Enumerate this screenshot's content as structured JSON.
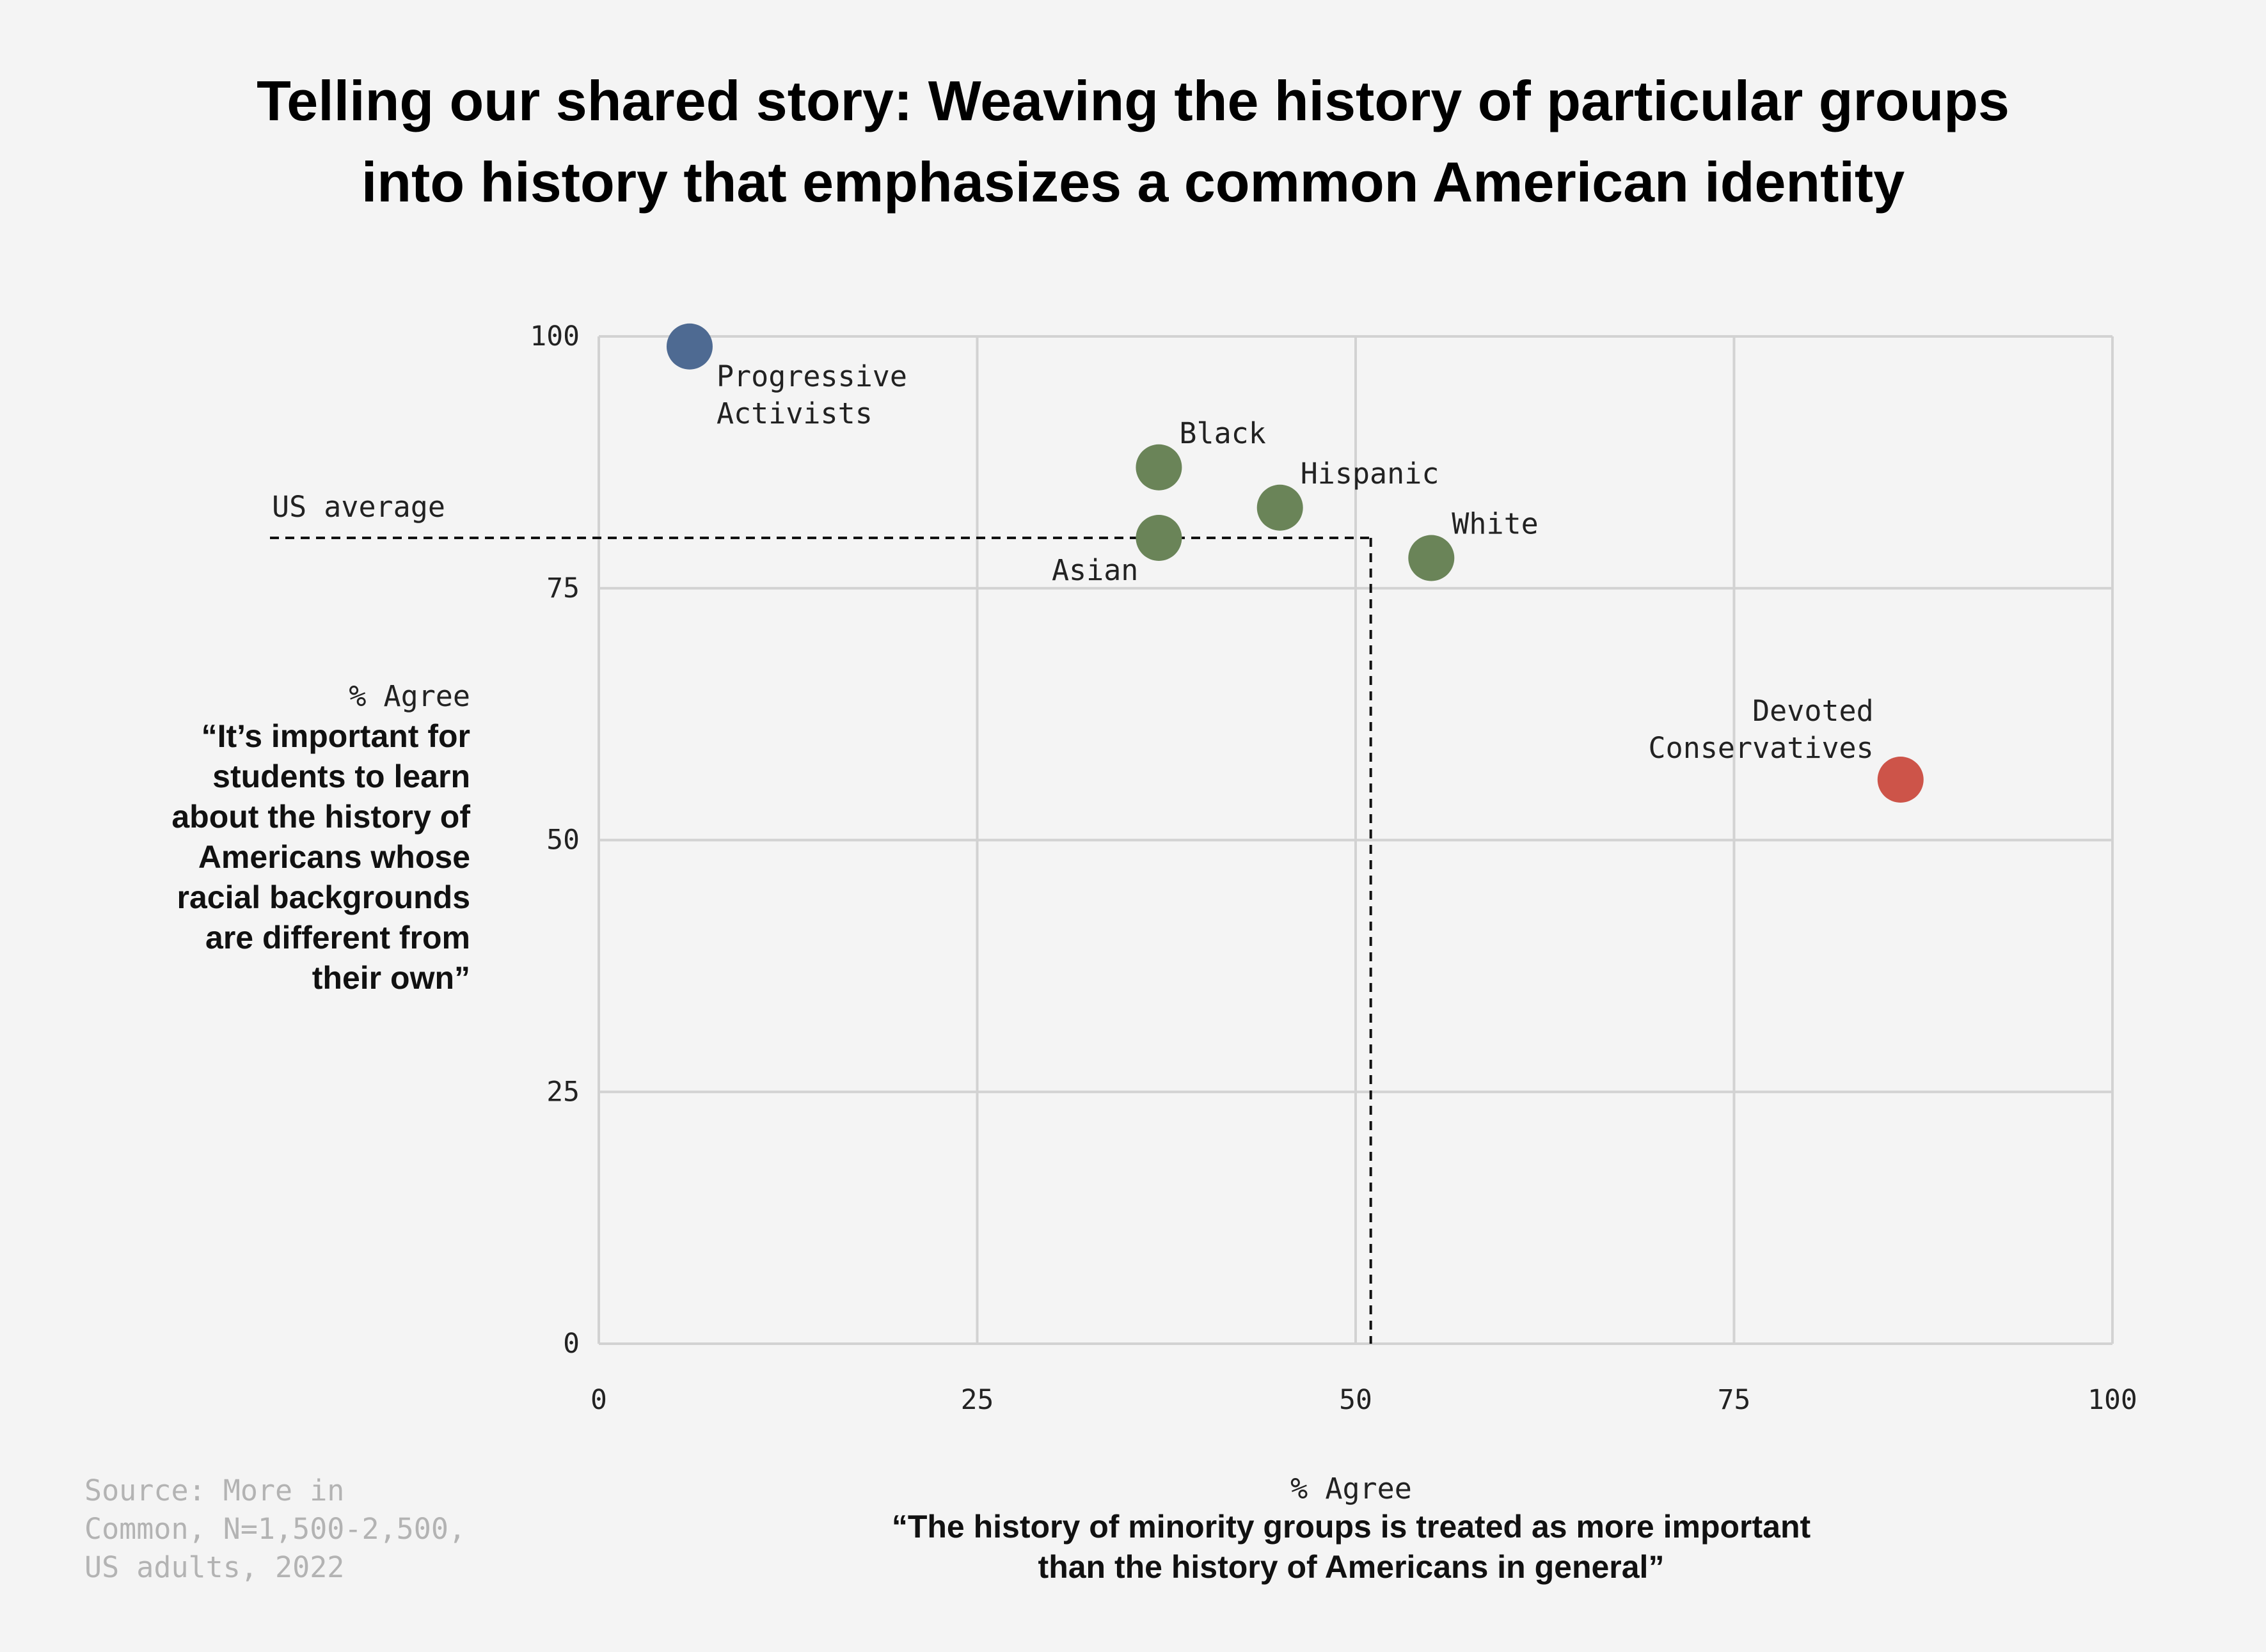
{
  "chart_data": {
    "type": "scatter",
    "title": [
      "Telling our shared story: Weaving the history of particular groups",
      "into history that emphasizes a common American identity"
    ],
    "xlim": [
      0,
      100
    ],
    "ylim": [
      0,
      100
    ],
    "x_ticks": [
      0,
      25,
      50,
      75,
      100
    ],
    "y_ticks": [
      0,
      25,
      50,
      75,
      100
    ],
    "grid": true,
    "xlabel": {
      "top": "% Agree",
      "quote": [
        "“The history of minority groups is treated as more important",
        "than the history of Americans in general”"
      ]
    },
    "ylabel": {
      "top": "% Agree",
      "quote": [
        "“It’s important for",
        "students to learn",
        "about the history of",
        "Americans whose",
        "racial backgrounds",
        "are different from",
        "their own”"
      ]
    },
    "us_average": {
      "label": "US average",
      "x": 51,
      "y": 80
    },
    "points": [
      {
        "name": [
          "Progressive",
          "Activists"
        ],
        "x": 6,
        "y": 99,
        "color": "#4e6a92",
        "label_pos": "below-right"
      },
      {
        "name": [
          "Black"
        ],
        "x": 37,
        "y": 87,
        "color": "#6a8458",
        "label_pos": "above-right"
      },
      {
        "name": [
          "Hispanic"
        ],
        "x": 45,
        "y": 83,
        "color": "#6a8458",
        "label_pos": "above-right"
      },
      {
        "name": [
          "Asian"
        ],
        "x": 37,
        "y": 80,
        "color": "#6a8458",
        "label_pos": "below-left"
      },
      {
        "name": [
          "White"
        ],
        "x": 55,
        "y": 78,
        "color": "#6a8458",
        "label_pos": "above-right"
      },
      {
        "name": [
          "Devoted",
          "Conservatives"
        ],
        "x": 86,
        "y": 56,
        "color": "#cd5449",
        "label_pos": "above-left"
      }
    ]
  },
  "source": [
    "Source: More in",
    "Common, N=1,500-2,500,",
    "US adults, 2022"
  ]
}
